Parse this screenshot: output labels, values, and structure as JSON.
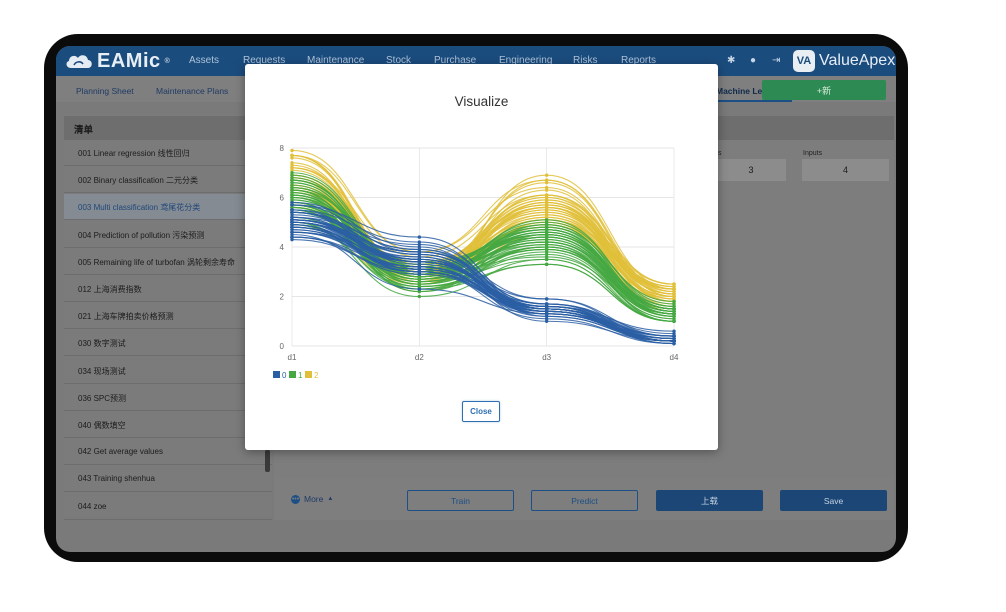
{
  "app": {
    "logo_text": "EAMic",
    "logo_mark": "®",
    "nav": [
      "Assets",
      "Requests",
      "Maintenance",
      "Stock",
      "Purchase",
      "Engineering",
      "Risks",
      "Reports"
    ],
    "header_icons": [
      "gear-icon",
      "user-icon",
      "logout-icon"
    ],
    "brand_badge": "VA",
    "brand_text": "ValueApex"
  },
  "subtabs": {
    "items": [
      "Planning Sheet",
      "Maintenance Plans"
    ],
    "active": "Machine Le",
    "new_button": "+新"
  },
  "list": {
    "title": "清单",
    "items": [
      "001 Linear regression 线性回归",
      "002 Binary classification 二元分类",
      "003 Multi classification 鸢尾花分类",
      "004 Prediction of pollution 污染预测",
      "005 Remaining life of turbofan 涡轮剩余寿命",
      "012 上海消费指数",
      "021 上海车牌拍卖价格预测",
      "030 数字测试",
      "034 现场测试",
      "036 SPC预测",
      "040 偶数填空",
      "042 Get average values",
      "043 Training shenhua",
      "044 zoe"
    ],
    "selected_index": 2
  },
  "fields": {
    "outputs_label": "ts",
    "outputs_value": "3",
    "inputs_label": "Inputs",
    "inputs_value": "4"
  },
  "bottom": {
    "more_label": "More",
    "train_label": "Train",
    "predict_label": "Predict",
    "upload_label": "上载",
    "save_label": "Save"
  },
  "modal": {
    "title": "Visualize",
    "close_label": "Close"
  },
  "colors": {
    "class0": "#2b5fa4",
    "class1": "#45a842",
    "class2": "#e0c03a",
    "header": "#1b4c7e"
  },
  "chart_data": {
    "type": "parallel-coordinates",
    "axes": [
      "d1",
      "d2",
      "d3",
      "d4"
    ],
    "ylim": [
      0,
      8
    ],
    "yticks": [
      0,
      2,
      4,
      6,
      8
    ],
    "legend": [
      "0",
      "1",
      "2"
    ],
    "series": [
      {
        "name": "0",
        "profiles": [
          [
            5.1,
            3.5,
            1.4,
            0.2
          ],
          [
            4.9,
            3.0,
            1.4,
            0.2
          ],
          [
            4.7,
            3.2,
            1.3,
            0.2
          ],
          [
            4.6,
            3.1,
            1.5,
            0.2
          ],
          [
            5.0,
            3.6,
            1.4,
            0.2
          ],
          [
            5.4,
            3.9,
            1.7,
            0.4
          ],
          [
            4.6,
            3.4,
            1.4,
            0.3
          ],
          [
            5.0,
            3.4,
            1.5,
            0.2
          ],
          [
            4.4,
            2.9,
            1.4,
            0.2
          ],
          [
            4.9,
            3.1,
            1.5,
            0.1
          ],
          [
            5.4,
            3.7,
            1.5,
            0.2
          ],
          [
            4.8,
            3.4,
            1.6,
            0.2
          ],
          [
            4.8,
            3.0,
            1.4,
            0.1
          ],
          [
            4.3,
            3.0,
            1.1,
            0.1
          ],
          [
            5.8,
            4.0,
            1.2,
            0.2
          ],
          [
            5.7,
            4.4,
            1.5,
            0.4
          ],
          [
            5.4,
            3.9,
            1.3,
            0.4
          ],
          [
            5.1,
            3.5,
            1.4,
            0.3
          ],
          [
            5.7,
            3.8,
            1.7,
            0.3
          ],
          [
            5.1,
            3.8,
            1.5,
            0.3
          ],
          [
            5.4,
            3.4,
            1.7,
            0.2
          ],
          [
            5.1,
            3.7,
            1.5,
            0.4
          ],
          [
            4.6,
            3.6,
            1.0,
            0.2
          ],
          [
            5.1,
            3.3,
            1.7,
            0.5
          ],
          [
            4.8,
            3.4,
            1.9,
            0.2
          ],
          [
            5.0,
            3.0,
            1.6,
            0.2
          ],
          [
            5.0,
            3.4,
            1.6,
            0.4
          ],
          [
            5.2,
            3.5,
            1.5,
            0.2
          ],
          [
            5.2,
            3.4,
            1.4,
            0.2
          ],
          [
            4.7,
            3.2,
            1.6,
            0.2
          ],
          [
            4.8,
            3.1,
            1.6,
            0.2
          ],
          [
            5.4,
            3.4,
            1.5,
            0.4
          ],
          [
            5.2,
            4.1,
            1.5,
            0.1
          ],
          [
            5.5,
            4.2,
            1.4,
            0.2
          ],
          [
            4.9,
            3.1,
            1.5,
            0.2
          ],
          [
            5.0,
            3.2,
            1.2,
            0.2
          ],
          [
            5.5,
            3.5,
            1.3,
            0.2
          ],
          [
            4.4,
            3.0,
            1.3,
            0.2
          ],
          [
            5.1,
            3.4,
            1.5,
            0.2
          ],
          [
            5.0,
            3.5,
            1.3,
            0.3
          ],
          [
            4.5,
            2.3,
            1.3,
            0.3
          ],
          [
            4.4,
            3.2,
            1.3,
            0.2
          ],
          [
            5.0,
            3.5,
            1.6,
            0.6
          ],
          [
            5.1,
            3.8,
            1.9,
            0.4
          ],
          [
            4.8,
            3.0,
            1.4,
            0.3
          ],
          [
            5.1,
            3.8,
            1.6,
            0.2
          ],
          [
            4.6,
            3.2,
            1.4,
            0.2
          ],
          [
            5.3,
            3.7,
            1.5,
            0.2
          ]
        ]
      },
      {
        "name": "1",
        "profiles": [
          [
            7.0,
            3.2,
            4.7,
            1.4
          ],
          [
            6.4,
            3.2,
            4.5,
            1.5
          ],
          [
            6.9,
            3.1,
            4.9,
            1.5
          ],
          [
            5.5,
            2.3,
            4.0,
            1.3
          ],
          [
            6.5,
            2.8,
            4.6,
            1.5
          ],
          [
            5.7,
            2.8,
            4.5,
            1.3
          ],
          [
            6.3,
            3.3,
            4.7,
            1.6
          ],
          [
            4.9,
            2.4,
            3.3,
            1.0
          ],
          [
            6.6,
            2.9,
            4.6,
            1.3
          ],
          [
            5.2,
            2.7,
            3.9,
            1.4
          ],
          [
            5.0,
            2.0,
            3.5,
            1.0
          ],
          [
            5.9,
            3.0,
            4.2,
            1.5
          ],
          [
            6.0,
            2.2,
            4.0,
            1.0
          ],
          [
            6.1,
            2.9,
            4.7,
            1.4
          ],
          [
            5.6,
            2.9,
            3.6,
            1.3
          ],
          [
            6.7,
            3.1,
            4.4,
            1.4
          ],
          [
            5.6,
            3.0,
            4.5,
            1.5
          ],
          [
            5.8,
            2.7,
            4.1,
            1.0
          ],
          [
            6.2,
            2.2,
            4.5,
            1.5
          ],
          [
            5.6,
            2.5,
            3.9,
            1.1
          ],
          [
            5.9,
            3.2,
            4.8,
            1.8
          ],
          [
            6.1,
            2.8,
            4.0,
            1.3
          ],
          [
            6.3,
            2.5,
            4.9,
            1.5
          ],
          [
            6.1,
            2.8,
            4.7,
            1.2
          ],
          [
            6.4,
            2.9,
            4.3,
            1.3
          ],
          [
            6.6,
            3.0,
            4.4,
            1.4
          ],
          [
            6.8,
            2.8,
            4.8,
            1.4
          ],
          [
            6.7,
            3.0,
            5.0,
            1.7
          ],
          [
            6.0,
            2.9,
            4.5,
            1.5
          ],
          [
            5.7,
            2.6,
            3.5,
            1.0
          ],
          [
            5.5,
            2.4,
            3.8,
            1.1
          ],
          [
            5.5,
            2.4,
            3.7,
            1.0
          ],
          [
            5.8,
            2.7,
            3.9,
            1.2
          ],
          [
            6.0,
            2.7,
            5.1,
            1.6
          ],
          [
            5.4,
            3.0,
            4.5,
            1.5
          ],
          [
            6.0,
            3.4,
            4.5,
            1.6
          ],
          [
            6.7,
            3.1,
            4.7,
            1.5
          ],
          [
            6.3,
            2.3,
            4.4,
            1.3
          ],
          [
            5.6,
            3.0,
            4.1,
            1.3
          ],
          [
            5.5,
            2.5,
            4.0,
            1.3
          ],
          [
            5.5,
            2.6,
            4.4,
            1.2
          ],
          [
            6.1,
            3.0,
            4.6,
            1.4
          ],
          [
            5.8,
            2.6,
            4.0,
            1.2
          ],
          [
            5.0,
            2.3,
            3.3,
            1.0
          ],
          [
            5.6,
            2.7,
            4.2,
            1.3
          ],
          [
            5.7,
            3.0,
            4.2,
            1.2
          ],
          [
            5.7,
            2.9,
            4.2,
            1.3
          ],
          [
            6.2,
            2.9,
            4.3,
            1.3
          ]
        ]
      },
      {
        "name": "2",
        "profiles": [
          [
            6.3,
            3.3,
            6.0,
            2.5
          ],
          [
            5.8,
            2.7,
            5.1,
            1.9
          ],
          [
            7.1,
            3.0,
            5.9,
            2.1
          ],
          [
            6.3,
            2.9,
            5.6,
            1.8
          ],
          [
            6.5,
            3.0,
            5.8,
            2.2
          ],
          [
            7.6,
            3.0,
            6.6,
            2.1
          ],
          [
            4.9,
            2.5,
            4.5,
            1.7
          ],
          [
            7.3,
            2.9,
            6.3,
            1.8
          ],
          [
            6.7,
            2.5,
            5.8,
            1.8
          ],
          [
            7.2,
            3.6,
            6.1,
            2.5
          ],
          [
            6.5,
            3.2,
            5.1,
            2.0
          ],
          [
            6.4,
            2.7,
            5.3,
            1.9
          ],
          [
            6.8,
            3.0,
            5.5,
            2.1
          ],
          [
            5.7,
            2.5,
            5.0,
            2.0
          ],
          [
            5.8,
            2.8,
            5.1,
            2.4
          ],
          [
            6.4,
            3.2,
            5.3,
            2.3
          ],
          [
            6.5,
            3.0,
            5.5,
            1.8
          ],
          [
            7.7,
            3.8,
            6.7,
            2.2
          ],
          [
            7.7,
            2.6,
            6.9,
            2.3
          ],
          [
            6.0,
            2.2,
            5.0,
            1.5
          ],
          [
            6.9,
            3.2,
            5.7,
            2.3
          ],
          [
            5.6,
            2.8,
            4.9,
            2.0
          ],
          [
            7.7,
            2.8,
            6.7,
            2.0
          ],
          [
            6.3,
            2.7,
            4.9,
            1.8
          ],
          [
            6.7,
            3.3,
            5.7,
            2.1
          ],
          [
            7.2,
            3.2,
            6.0,
            1.8
          ],
          [
            6.2,
            2.8,
            4.8,
            1.8
          ],
          [
            6.1,
            3.0,
            4.9,
            1.8
          ],
          [
            6.4,
            2.8,
            5.6,
            2.1
          ],
          [
            7.2,
            3.0,
            5.8,
            1.6
          ],
          [
            7.4,
            2.8,
            6.1,
            1.9
          ],
          [
            7.9,
            3.8,
            6.4,
            2.0
          ],
          [
            6.4,
            2.8,
            5.6,
            2.2
          ],
          [
            6.3,
            2.8,
            5.1,
            1.5
          ],
          [
            6.1,
            2.6,
            5.6,
            1.4
          ],
          [
            7.7,
            3.0,
            6.1,
            2.3
          ],
          [
            6.3,
            3.4,
            5.6,
            2.4
          ],
          [
            6.4,
            3.1,
            5.5,
            1.8
          ],
          [
            6.0,
            3.0,
            4.8,
            1.8
          ],
          [
            6.9,
            3.1,
            5.4,
            2.1
          ],
          [
            6.7,
            3.1,
            5.6,
            2.4
          ],
          [
            6.9,
            3.1,
            5.1,
            2.3
          ],
          [
            6.8,
            3.2,
            5.9,
            2.3
          ],
          [
            6.7,
            3.3,
            5.7,
            2.5
          ],
          [
            6.7,
            3.0,
            5.2,
            2.3
          ],
          [
            6.3,
            2.5,
            5.0,
            1.9
          ],
          [
            6.5,
            3.0,
            5.2,
            2.0
          ],
          [
            6.2,
            3.4,
            5.4,
            2.3
          ]
        ]
      }
    ]
  }
}
